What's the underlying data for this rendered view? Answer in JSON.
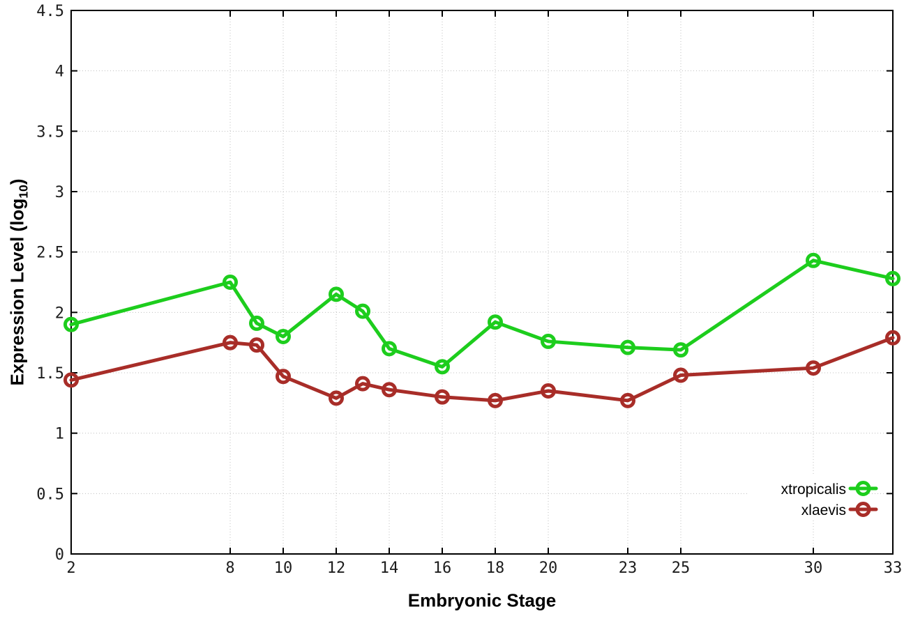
{
  "chart_data": {
    "type": "line",
    "title": "",
    "xlabel": "Embryonic Stage",
    "ylabel": "Expression Level (log10)",
    "ylabel_parts": {
      "prefix": "Expression Level (log",
      "sub": "10",
      "suffix": ")"
    },
    "x": [
      2,
      8,
      9,
      10,
      12,
      13,
      14,
      16,
      18,
      20,
      23,
      25,
      30,
      33
    ],
    "x_tick_labels": [
      "2",
      "8",
      "10",
      "12",
      "14",
      "16",
      "18",
      "20",
      "23",
      "25",
      "30",
      "33"
    ],
    "x_ticks": [
      2,
      8,
      10,
      12,
      14,
      16,
      18,
      20,
      23,
      25,
      30,
      33
    ],
    "y_tick_labels": [
      "0",
      "0.5",
      "1",
      "1.5",
      "2",
      "2.5",
      "3",
      "3.5",
      "4",
      "4.5"
    ],
    "y_ticks": [
      0,
      0.5,
      1,
      1.5,
      2,
      2.5,
      3,
      3.5,
      4,
      4.5
    ],
    "xlim": [
      2,
      33
    ],
    "ylim": [
      0,
      4.5
    ],
    "grid": true,
    "legend_position": "inside-bottom-right",
    "series": [
      {
        "name": "xtropicalis",
        "color": "#1dcd1d",
        "values": [
          1.9,
          2.25,
          1.91,
          1.8,
          2.15,
          2.01,
          1.7,
          1.55,
          1.92,
          1.76,
          1.71,
          1.69,
          2.43,
          2.28
        ]
      },
      {
        "name": "xlaevis",
        "color": "#a82d28",
        "values": [
          1.44,
          1.75,
          1.73,
          1.47,
          1.29,
          1.41,
          1.36,
          1.3,
          1.27,
          1.35,
          1.27,
          1.48,
          1.54,
          1.79
        ]
      }
    ],
    "colors": {
      "grid": "#bfbfbf",
      "border": "#000000",
      "tick_text": "#1c1c1c"
    }
  }
}
